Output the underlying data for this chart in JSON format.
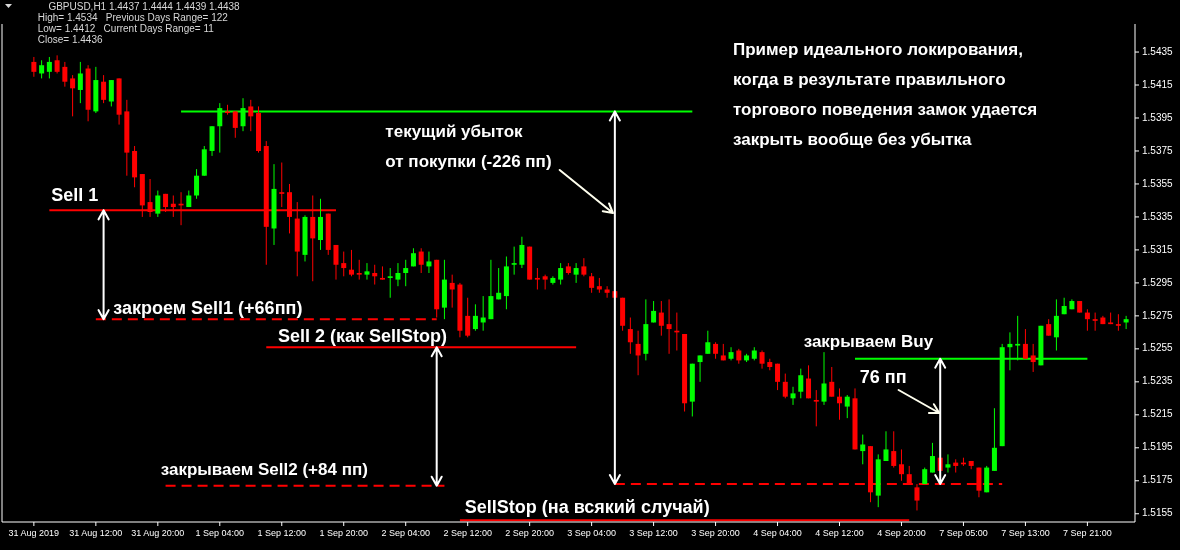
{
  "chart_data": {
    "type": "candlestick",
    "categories": [
      "31 Aug 2019",
      null,
      null,
      null,
      null,
      null,
      null,
      null,
      "31 Aug 12:00",
      null,
      null,
      null,
      null,
      null,
      null,
      null,
      "31 Aug 20:00",
      null,
      null,
      null,
      null,
      null,
      null,
      null,
      "1 Sep 04:00",
      null,
      null,
      null,
      null,
      null,
      null,
      null,
      "1 Sep 12:00",
      null,
      null,
      null,
      null,
      null,
      null,
      null,
      "1 Sep 20:00",
      null,
      null,
      null,
      null,
      null,
      null,
      null,
      "2 Sep 04:00",
      null,
      null,
      null,
      null,
      null,
      null,
      null,
      "2 Sep 12:00",
      null,
      null,
      null,
      null,
      null,
      null,
      null,
      "2 Sep 20:00",
      null,
      null,
      null,
      null,
      null,
      null,
      null,
      "3 Sep 04:00",
      null,
      null,
      null,
      null,
      null,
      null,
      null,
      "3 Sep 12:00",
      null,
      null,
      null,
      null,
      null,
      null,
      null,
      "3 Sep 20:00",
      null,
      null,
      null,
      null,
      null,
      null,
      null,
      "4 Sep 04:00",
      null,
      null,
      null,
      null,
      null,
      null,
      null,
      "4 Sep 12:00",
      null,
      null,
      null,
      null,
      null,
      null,
      null,
      "4 Sep 20:00",
      null,
      null,
      null,
      null,
      null,
      null,
      null,
      "7 Sep 05:00",
      null,
      null,
      null,
      null,
      null,
      null,
      null,
      "7 Sep 13:00",
      null,
      null,
      null,
      null,
      null,
      null,
      null,
      "7 Sep 21:00",
      null,
      null,
      null,
      null,
      null
    ],
    "ohlc": [
      [
        1.5429,
        1.5432,
        1.542,
        1.5423
      ],
      [
        1.5422,
        1.543,
        1.5419,
        1.5427
      ],
      [
        1.5423,
        1.5432,
        1.5419,
        1.5429
      ],
      [
        1.543,
        1.5433,
        1.5422,
        1.5423
      ],
      [
        1.5426,
        1.5429,
        1.5414,
        1.5417
      ],
      [
        1.5419,
        1.5421,
        1.5396,
        1.5413
      ],
      [
        1.5412,
        1.5429,
        1.5404,
        1.5422
      ],
      [
        1.5425,
        1.5427,
        1.5393,
        1.54
      ],
      [
        1.5399,
        1.5426,
        1.5398,
        1.5418
      ],
      [
        1.5417,
        1.5421,
        1.5404,
        1.5406
      ],
      [
        1.5405,
        1.5418,
        1.5402,
        1.5418
      ],
      [
        1.5419,
        1.5419,
        1.5391,
        1.5397
      ],
      [
        1.5399,
        1.5406,
        1.536,
        1.5374
      ],
      [
        1.5375,
        1.5378,
        1.5353,
        1.5359
      ],
      [
        1.5361,
        1.5361,
        1.5335,
        1.5342
      ],
      [
        1.5344,
        1.5358,
        1.5335,
        1.5338
      ],
      [
        1.5337,
        1.5351,
        1.5335,
        1.5348
      ],
      [
        1.5349,
        1.5349,
        1.5338,
        1.5341
      ],
      [
        1.5343,
        1.5348,
        1.5335,
        1.5341
      ],
      [
        1.5343,
        1.535,
        1.533,
        1.5342
      ],
      [
        1.5341,
        1.5351,
        1.5341,
        1.5348
      ],
      [
        1.5348,
        1.5364,
        1.5346,
        1.536
      ],
      [
        1.536,
        1.5378,
        1.536,
        1.5376
      ],
      [
        1.5375,
        1.539,
        1.5372,
        1.539
      ],
      [
        1.539,
        1.5404,
        1.5374,
        1.5401
      ],
      [
        1.5399,
        1.5403,
        1.5397,
        1.5398
      ],
      [
        1.5399,
        1.5399,
        1.5383,
        1.5389
      ],
      [
        1.539,
        1.5407,
        1.5387,
        1.5401
      ],
      [
        1.5402,
        1.5406,
        1.5387,
        1.5396
      ],
      [
        1.5398,
        1.5402,
        1.5374,
        1.5375
      ],
      [
        1.5378,
        1.5381,
        1.5306,
        1.5329
      ],
      [
        1.5328,
        1.5367,
        1.5318,
        1.5352
      ],
      [
        1.535,
        1.5368,
        1.5341,
        1.5349
      ],
      [
        1.535,
        1.5355,
        1.5325,
        1.5335
      ],
      [
        1.5334,
        1.5344,
        1.5299,
        1.5314
      ],
      [
        1.5312,
        1.5336,
        1.5308,
        1.5335
      ],
      [
        1.5335,
        1.5348,
        1.5296,
        1.5322
      ],
      [
        1.5321,
        1.5346,
        1.5315,
        1.5335
      ],
      [
        1.5337,
        1.5337,
        1.5312,
        1.5315
      ],
      [
        1.5318,
        1.5318,
        1.5297,
        1.5306
      ],
      [
        1.5307,
        1.5314,
        1.5299,
        1.5304
      ],
      [
        1.5303,
        1.5315,
        1.5299,
        1.53
      ],
      [
        1.5301,
        1.5309,
        1.5297,
        1.53
      ],
      [
        1.53,
        1.5307,
        1.5297,
        1.5302
      ],
      [
        1.5301,
        1.5306,
        1.5294,
        1.5299
      ],
      [
        1.5298,
        1.5305,
        1.5297,
        1.5297
      ],
      [
        1.5298,
        1.5304,
        1.5286,
        1.5299
      ],
      [
        1.5297,
        1.5307,
        1.5293,
        1.5301
      ],
      [
        1.5301,
        1.5309,
        1.5293,
        1.5304
      ],
      [
        1.5305,
        1.5316,
        1.5305,
        1.5313
      ],
      [
        1.5314,
        1.5316,
        1.5301,
        1.5306
      ],
      [
        1.5305,
        1.5314,
        1.5301,
        1.5308
      ],
      [
        1.5309,
        1.5309,
        1.5274,
        1.5279
      ],
      [
        1.528,
        1.5309,
        1.5273,
        1.5297
      ],
      [
        1.5295,
        1.53,
        1.528,
        1.5291
      ],
      [
        1.5294,
        1.5295,
        1.5262,
        1.5266
      ],
      [
        1.5275,
        1.5286,
        1.5262,
        1.5263
      ],
      [
        1.5267,
        1.5282,
        1.5266,
        1.5275
      ],
      [
        1.5271,
        1.5287,
        1.5266,
        1.5274
      ],
      [
        1.5273,
        1.5309,
        1.5273,
        1.5287
      ],
      [
        1.5285,
        1.5304,
        1.5285,
        1.5289
      ],
      [
        1.5287,
        1.5311,
        1.5279,
        1.5305
      ],
      [
        1.5306,
        1.5317,
        1.53,
        1.5307
      ],
      [
        1.5306,
        1.5323,
        1.5304,
        1.5318
      ],
      [
        1.5317,
        1.5317,
        1.5297,
        1.5297
      ],
      [
        1.5298,
        1.5304,
        1.5291,
        1.5297
      ],
      [
        1.5299,
        1.53,
        1.5291,
        1.5297
      ],
      [
        1.5295,
        1.5299,
        1.5294,
        1.5298
      ],
      [
        1.5297,
        1.5307,
        1.5294,
        1.5304
      ],
      [
        1.5305,
        1.5307,
        1.53,
        1.5301
      ],
      [
        1.53,
        1.5307,
        1.5295,
        1.5304
      ],
      [
        1.5305,
        1.531,
        1.5299,
        1.53
      ],
      [
        1.5299,
        1.5301,
        1.5289,
        1.5292
      ],
      [
        1.5293,
        1.5298,
        1.5289,
        1.5291
      ],
      [
        1.5291,
        1.5293,
        1.5286,
        1.5289
      ],
      [
        1.529,
        1.529,
        1.5286,
        1.5286
      ],
      [
        1.5286,
        1.5286,
        1.5266,
        1.5269
      ],
      [
        1.5267,
        1.5274,
        1.5252,
        1.5259
      ],
      [
        1.5258,
        1.5266,
        1.5239,
        1.5251
      ],
      [
        1.5252,
        1.5285,
        1.5248,
        1.527
      ],
      [
        1.5271,
        1.5284,
        1.5271,
        1.5278
      ],
      [
        1.5277,
        1.5284,
        1.5263,
        1.5269
      ],
      [
        1.527,
        1.5285,
        1.5252,
        1.5267
      ],
      [
        1.5266,
        1.5277,
        1.5254,
        1.5265
      ],
      [
        1.5264,
        1.5264,
        1.5217,
        1.5222
      ],
      [
        1.5223,
        1.5246,
        1.5214,
        1.5246
      ],
      [
        1.5247,
        1.5251,
        1.5235,
        1.5251
      ],
      [
        1.5252,
        1.5266,
        1.5252,
        1.5259
      ],
      [
        1.5258,
        1.5259,
        1.5249,
        1.5252
      ],
      [
        1.5251,
        1.5258,
        1.5248,
        1.5248
      ],
      [
        1.5249,
        1.5256,
        1.5248,
        1.5253
      ],
      [
        1.5254,
        1.5255,
        1.5246,
        1.5248
      ],
      [
        1.5248,
        1.5252,
        1.5247,
        1.5251
      ],
      [
        1.5249,
        1.5256,
        1.5248,
        1.5254
      ],
      [
        1.5253,
        1.5254,
        1.5243,
        1.5246
      ],
      [
        1.5247,
        1.5249,
        1.5242,
        1.5244
      ],
      [
        1.5246,
        1.5246,
        1.523,
        1.5235
      ],
      [
        1.5235,
        1.524,
        1.5225,
        1.5226
      ],
      [
        1.5225,
        1.5232,
        1.5221,
        1.5228
      ],
      [
        1.5229,
        1.5243,
        1.5225,
        1.5239
      ],
      [
        1.5237,
        1.5245,
        1.5225,
        1.5225
      ],
      [
        1.5224,
        1.523,
        1.5208,
        1.5223
      ],
      [
        1.5223,
        1.5253,
        1.5221,
        1.5234
      ],
      [
        1.5235,
        1.5244,
        1.5226,
        1.5226
      ],
      [
        1.5226,
        1.5231,
        1.5212,
        1.5222
      ],
      [
        1.522,
        1.5227,
        1.5213,
        1.5226
      ],
      [
        1.5225,
        1.5231,
        1.5194,
        1.5194
      ],
      [
        1.5193,
        1.5203,
        1.5185,
        1.5197
      ],
      [
        1.5196,
        1.5196,
        1.5162,
        1.5168
      ],
      [
        1.5166,
        1.5191,
        1.5159,
        1.5188
      ],
      [
        1.5187,
        1.5205,
        1.5187,
        1.5194
      ],
      [
        1.5193,
        1.5205,
        1.5183,
        1.5184
      ],
      [
        1.5185,
        1.5194,
        1.5175,
        1.5179
      ],
      [
        1.5179,
        1.5184,
        1.5173,
        1.5173
      ],
      [
        1.5171,
        1.5173,
        1.5157,
        1.5163
      ],
      [
        1.5173,
        1.5183,
        1.5173,
        1.5182
      ],
      [
        1.518,
        1.5198,
        1.518,
        1.519
      ],
      [
        1.5189,
        1.5189,
        1.5181,
        1.5181
      ],
      [
        1.5183,
        1.5191,
        1.518,
        1.5185
      ],
      [
        1.5186,
        1.5188,
        1.518,
        1.5184
      ],
      [
        1.5186,
        1.5189,
        1.5184,
        1.5185
      ],
      [
        1.5187,
        1.5187,
        1.5182,
        1.5184
      ],
      [
        1.5183,
        1.5183,
        1.5165,
        1.5169
      ],
      [
        1.5168,
        1.5184,
        1.5168,
        1.5183
      ],
      [
        1.5181,
        1.5219,
        1.5181,
        1.5195
      ],
      [
        1.5196,
        1.5258,
        1.5196,
        1.5256
      ],
      [
        1.5256,
        1.5265,
        1.5242,
        1.5258
      ],
      [
        1.5257,
        1.5275,
        1.5248,
        1.5258
      ],
      [
        1.5258,
        1.5267,
        1.5249,
        1.5249
      ],
      [
        1.5251,
        1.5258,
        1.5241,
        1.5247
      ],
      [
        1.5245,
        1.5269,
        1.5245,
        1.5269
      ],
      [
        1.527,
        1.5273,
        1.5263,
        1.5263
      ],
      [
        1.5262,
        1.5285,
        1.5254,
        1.5275
      ],
      [
        1.5276,
        1.5286,
        1.5276,
        1.5281
      ],
      [
        1.5279,
        1.5285,
        1.5279,
        1.5284
      ],
      [
        1.5284,
        1.5284,
        1.5277,
        1.5277
      ],
      [
        1.5277,
        1.5279,
        1.5266,
        1.5273
      ],
      [
        1.5273,
        1.5277,
        1.5266,
        1.5272
      ],
      [
        1.5274,
        1.5275,
        1.527,
        1.527
      ],
      [
        1.5271,
        1.5277,
        1.527,
        1.527
      ],
      [
        1.527,
        1.5276,
        1.5266,
        1.5269
      ],
      [
        1.5271,
        1.5275,
        1.5267,
        1.5273
      ]
    ],
    "colors": [
      "#ff0000",
      "#00ff00",
      "#00ff00",
      "#ff0000",
      "#ff0000",
      "#ff0000",
      "#00ff00",
      "#ff0000",
      "#00ff00",
      "#ff0000",
      "#00ff00",
      "#ff0000",
      "#ff0000",
      "#ff0000",
      "#ff0000",
      "#ff0000",
      "#00ff00",
      "#ff0000",
      "#ff0000",
      "#ff0000",
      "#00ff00",
      "#00ff00",
      "#00ff00",
      "#00ff00",
      "#00ff00",
      "#ff0000",
      "#ff0000",
      "#00ff00",
      "#ff0000",
      "#ff0000",
      "#ff0000",
      "#00ff00",
      "#ff0000",
      "#ff0000",
      "#ff0000",
      "#00ff00",
      "#ff0000",
      "#00ff00",
      "#ff0000",
      "#ff0000",
      "#ff0000",
      "#ff0000",
      "#ff0000",
      "#00ff00",
      "#ff0000",
      "#ff0000",
      "#00ff00",
      "#00ff00",
      "#00ff00",
      "#00ff00",
      "#ff0000",
      "#00ff00",
      "#ff0000",
      "#00ff00",
      "#ff0000",
      "#ff0000",
      "#ff0000",
      "#00ff00",
      "#00ff00",
      "#00ff00",
      "#00ff00",
      "#00ff00",
      "#00ff00",
      "#00ff00",
      "#ff0000",
      "#ff0000",
      "#ff0000",
      "#00ff00",
      "#00ff00",
      "#ff0000",
      "#00ff00",
      "#ff0000",
      "#ff0000",
      "#ff0000",
      "#ff0000",
      "#ff0000",
      "#ff0000",
      "#ff0000",
      "#ff0000",
      "#00ff00",
      "#00ff00",
      "#ff0000",
      "#ff0000",
      "#ff0000",
      "#ff0000",
      "#00ff00",
      "#00ff00",
      "#00ff00",
      "#ff0000",
      "#ff0000",
      "#00ff00",
      "#ff0000",
      "#00ff00",
      "#00ff00",
      "#ff0000",
      "#ff0000",
      "#ff0000",
      "#ff0000",
      "#00ff00",
      "#00ff00",
      "#ff0000",
      "#ff0000",
      "#00ff00",
      "#ff0000",
      "#ff0000",
      "#00ff00",
      "#ff0000",
      "#00ff00",
      "#ff0000",
      "#00ff00",
      "#00ff00",
      "#ff0000",
      "#ff0000",
      "#ff0000",
      "#ff0000",
      "#00ff00",
      "#00ff00",
      "#ff0000",
      "#00ff00",
      "#ff0000",
      "#ff0000",
      "#ff0000",
      "#ff0000",
      "#00ff00",
      "#00ff00",
      "#00ff00",
      "#00ff00",
      "#00ff00",
      "#ff0000",
      "#ff0000",
      "#00ff00",
      "#ff0000",
      "#00ff00",
      "#00ff00",
      "#00ff00",
      "#ff0000",
      "#ff0000",
      "#ff0000",
      "#ff0000",
      "#ff0000",
      "#ff0000",
      "#00ff00"
    ],
    "series": [
      {
        "type": "line",
        "color": "#00ff00",
        "line_style": "solid",
        "values": [
          null,
          null,
          null,
          null,
          null,
          null,
          null,
          null,
          null,
          null,
          null,
          null,
          null,
          null,
          null,
          null,
          null,
          null,
          null,
          1.5399,
          1.5399,
          1.5399,
          1.5399,
          1.5399,
          1.5399,
          1.5399,
          1.5399,
          1.5399,
          1.5399,
          1.5399,
          1.5399,
          1.5399,
          1.5399,
          1.5399,
          1.5399,
          1.5399,
          1.5399,
          1.5399,
          1.5399,
          1.5399,
          1.5399,
          1.5399,
          1.5399,
          1.5399,
          1.5399,
          1.5399,
          1.5399,
          1.5399,
          1.5399,
          1.5399,
          1.5399,
          1.5399,
          1.5399,
          1.5399,
          1.5399,
          1.5399,
          1.5399,
          1.5399,
          1.5399,
          1.5399,
          1.5399,
          1.5399,
          1.5399,
          1.5399,
          1.5399,
          1.5399,
          1.5399,
          1.5399,
          1.5399,
          1.5399,
          1.5399,
          1.5399,
          1.5399,
          1.5399,
          1.5399,
          1.5399,
          1.5399,
          1.5399,
          1.5399,
          1.5399,
          1.5399,
          1.5399,
          1.5399,
          1.5399,
          1.5399,
          1.5399,
          null,
          null,
          null,
          null,
          null,
          null,
          null,
          null,
          null,
          null,
          null,
          null,
          null,
          null,
          null,
          null,
          null,
          null,
          null,
          null,
          null,
          null,
          null,
          null,
          null,
          null,
          null,
          null,
          null,
          null,
          null,
          null,
          null,
          null,
          null,
          null,
          null,
          null,
          null,
          null,
          null,
          null,
          null,
          null,
          null,
          null,
          null,
          null,
          null,
          null,
          null,
          null,
          null,
          null,
          null,
          null
        ]
      },
      {
        "type": "line",
        "color": "#ff0000",
        "line_style": "solid",
        "values": [
          null,
          null,
          1.5339,
          1.5339,
          1.5339,
          1.5339,
          1.5339,
          1.5339,
          1.5339,
          1.5339,
          1.5339,
          1.5339,
          1.5339,
          1.5339,
          1.5339,
          1.5339,
          1.5339,
          1.5339,
          1.5339,
          1.5339,
          1.5339,
          1.5339,
          1.5339,
          1.5339,
          1.5339,
          1.5339,
          1.5339,
          1.5339,
          1.5339,
          1.5339,
          1.5339,
          1.5339,
          1.5339,
          1.5339,
          1.5339,
          1.5339,
          1.5339,
          1.5339,
          1.5339,
          1.5339,
          null,
          null,
          null,
          null,
          null,
          null,
          null,
          null,
          null,
          null,
          null,
          null,
          null,
          null,
          null,
          null,
          null,
          null,
          null,
          null,
          null,
          null,
          null,
          null,
          null,
          null,
          null,
          null,
          null,
          null,
          null,
          null,
          null,
          null,
          null,
          null,
          null,
          null,
          null,
          null,
          null,
          null,
          null,
          null,
          null,
          null,
          null,
          null,
          null,
          null,
          null,
          null,
          null,
          null,
          null,
          null,
          null,
          null,
          null,
          null,
          null,
          null,
          null,
          null,
          null,
          null,
          null,
          null,
          null,
          null,
          null,
          null,
          null,
          null,
          null,
          null,
          null,
          null,
          null,
          null,
          null,
          null,
          null,
          null,
          null,
          null,
          null,
          null,
          null,
          null,
          null,
          null,
          null,
          null,
          null,
          null,
          null,
          null,
          null,
          null,
          null,
          null
        ]
      },
      {
        "type": "line",
        "color": "#ff0000",
        "line_style": "dashed",
        "values": [
          null,
          null,
          null,
          null,
          null,
          null,
          null,
          null,
          1.5273,
          1.5273,
          1.5273,
          1.5273,
          1.5273,
          1.5273,
          1.5273,
          1.5273,
          1.5273,
          1.5273,
          1.5273,
          1.5273,
          1.5273,
          1.5273,
          1.5273,
          1.5273,
          1.5273,
          1.5273,
          1.5273,
          1.5273,
          1.5273,
          1.5273,
          1.5273,
          1.5273,
          1.5273,
          1.5273,
          1.5273,
          1.5273,
          1.5273,
          1.5273,
          1.5273,
          1.5273,
          1.5273,
          1.5273,
          1.5273,
          1.5273,
          1.5273,
          1.5273,
          1.5273,
          1.5273,
          1.5273,
          1.5273,
          1.5273,
          1.5273,
          1.5273,
          null,
          null,
          null,
          null,
          null,
          null,
          null,
          null,
          null,
          null,
          null,
          null,
          null,
          null,
          null,
          null,
          null,
          null,
          null,
          null,
          null,
          null,
          null,
          null,
          null,
          null,
          null,
          null,
          null,
          null,
          null,
          null,
          null,
          null,
          null,
          null,
          null,
          null,
          null,
          null,
          null,
          null,
          null,
          null,
          null,
          null,
          null,
          null,
          null,
          null,
          null,
          null,
          null,
          null,
          null,
          null,
          null,
          null,
          null,
          null,
          null,
          null,
          null,
          null,
          null,
          null,
          null,
          null,
          null,
          null,
          null,
          null,
          null,
          null,
          null,
          null,
          null,
          null,
          null,
          null,
          null,
          null,
          null,
          null,
          null,
          null,
          null,
          null,
          null
        ]
      },
      {
        "type": "line",
        "color": "#ff0000",
        "line_style": "solid",
        "values": [
          null,
          null,
          null,
          null,
          null,
          null,
          null,
          null,
          null,
          null,
          null,
          null,
          null,
          null,
          null,
          null,
          null,
          null,
          null,
          null,
          null,
          null,
          null,
          null,
          null,
          null,
          null,
          null,
          null,
          null,
          1.5256,
          1.5256,
          1.5256,
          1.5256,
          1.5256,
          1.5256,
          1.5256,
          1.5256,
          1.5256,
          1.5256,
          1.5256,
          1.5256,
          1.5256,
          1.5256,
          1.5256,
          1.5256,
          1.5256,
          1.5256,
          1.5256,
          1.5256,
          1.5256,
          1.5256,
          1.5256,
          1.5256,
          1.5256,
          1.5256,
          1.5256,
          1.5256,
          1.5256,
          1.5256,
          1.5256,
          1.5256,
          1.5256,
          1.5256,
          1.5256,
          1.5256,
          1.5256,
          1.5256,
          1.5256,
          1.5256,
          1.5256,
          null,
          null,
          null,
          null,
          null,
          null,
          null,
          null,
          null,
          null,
          null,
          null,
          null,
          null,
          null,
          null,
          null,
          null,
          null,
          null,
          null,
          null,
          null,
          null,
          null,
          null,
          null,
          null,
          null,
          null,
          null,
          null,
          null,
          null,
          null,
          null,
          null,
          null,
          null,
          null,
          null,
          null,
          null,
          null,
          null,
          null,
          null,
          null,
          null,
          null,
          null,
          null,
          null,
          null,
          null,
          null,
          null,
          null,
          null,
          null,
          null,
          null,
          null,
          null,
          null,
          null,
          null,
          null,
          null,
          null,
          null
        ]
      },
      {
        "type": "line",
        "color": "#ff0000",
        "line_style": "dashed",
        "values": [
          null,
          null,
          null,
          null,
          null,
          null,
          null,
          null,
          null,
          null,
          null,
          null,
          null,
          null,
          null,
          null,
          null,
          1.5172,
          1.5172,
          1.5172,
          1.5172,
          1.5172,
          1.5172,
          1.5172,
          1.5172,
          1.5172,
          1.5172,
          1.5172,
          1.5172,
          1.5172,
          1.5172,
          1.5172,
          1.5172,
          1.5172,
          1.5172,
          1.5172,
          1.5172,
          1.5172,
          1.5172,
          1.5172,
          1.5172,
          1.5172,
          1.5172,
          1.5172,
          1.5172,
          1.5172,
          1.5172,
          1.5172,
          1.5172,
          1.5172,
          1.5172,
          1.5172,
          1.5172,
          1.5172,
          null,
          null,
          null,
          null,
          null,
          null,
          null,
          null,
          null,
          null,
          null,
          null,
          null,
          null,
          null,
          null,
          null,
          null,
          null,
          null,
          null,
          null,
          null,
          null,
          null,
          null,
          null,
          null,
          null,
          null,
          null,
          null,
          null,
          null,
          null,
          null,
          null,
          null,
          null,
          null,
          null,
          null,
          null,
          null,
          null,
          null,
          null,
          null,
          null,
          null,
          null,
          null,
          null,
          null,
          null,
          null,
          null,
          null,
          null,
          null,
          null,
          null,
          null,
          null,
          null,
          null,
          null,
          null,
          null,
          null,
          null,
          null,
          null,
          null,
          null,
          null,
          null,
          null,
          null,
          null,
          null,
          null,
          null,
          null,
          null,
          null,
          null,
          null
        ]
      },
      {
        "type": "line",
        "color": "#ff0000",
        "line_style": "dashed",
        "values": [
          null,
          null,
          null,
          null,
          null,
          null,
          null,
          null,
          null,
          null,
          null,
          null,
          null,
          null,
          null,
          null,
          null,
          null,
          null,
          null,
          null,
          null,
          null,
          null,
          null,
          null,
          null,
          null,
          null,
          null,
          null,
          null,
          null,
          null,
          null,
          null,
          null,
          null,
          null,
          null,
          null,
          null,
          null,
          null,
          null,
          null,
          null,
          null,
          null,
          null,
          null,
          null,
          null,
          null,
          null,
          null,
          null,
          null,
          null,
          null,
          null,
          null,
          null,
          null,
          null,
          null,
          null,
          null,
          null,
          null,
          null,
          null,
          null,
          null,
          null,
          1.5173,
          1.5173,
          1.5173,
          1.5173,
          1.5173,
          1.5173,
          1.5173,
          1.5173,
          1.5173,
          1.5173,
          1.5173,
          1.5173,
          1.5173,
          1.5173,
          1.5173,
          1.5173,
          1.5173,
          1.5173,
          1.5173,
          1.5173,
          1.5173,
          1.5173,
          1.5173,
          1.5173,
          1.5173,
          1.5173,
          1.5173,
          1.5173,
          1.5173,
          1.5173,
          1.5173,
          1.5173,
          1.5173,
          1.5173,
          1.5173,
          1.5173,
          1.5173,
          1.5173,
          1.5173,
          1.5173,
          1.5173,
          1.5173,
          1.5173,
          1.5173,
          1.5173,
          1.5173,
          1.5173,
          1.5173,
          1.5173,
          1.5173,
          1.5173,
          null,
          null,
          null,
          null,
          null,
          null,
          null,
          null,
          null,
          null,
          null,
          null,
          null,
          null,
          null,
          null
        ]
      },
      {
        "type": "line",
        "color": "#ff0000",
        "line_style": "solid",
        "values": [
          null,
          null,
          null,
          null,
          null,
          null,
          null,
          null,
          null,
          null,
          null,
          null,
          null,
          null,
          null,
          null,
          null,
          null,
          null,
          null,
          null,
          null,
          null,
          null,
          null,
          null,
          null,
          null,
          null,
          null,
          null,
          null,
          null,
          null,
          null,
          null,
          null,
          null,
          null,
          null,
          null,
          null,
          null,
          null,
          null,
          null,
          null,
          null,
          null,
          null,
          null,
          null,
          null,
          null,
          null,
          1.5151,
          1.5151,
          1.5151,
          1.5151,
          1.5151,
          1.5151,
          1.5151,
          1.5151,
          1.5151,
          1.5151,
          1.5151,
          1.5151,
          1.5151,
          1.5151,
          1.5151,
          1.5151,
          1.5151,
          1.5151,
          1.5151,
          1.5151,
          1.5151,
          1.5151,
          1.5151,
          1.5151,
          1.5151,
          1.5151,
          1.5151,
          1.5151,
          1.5151,
          1.5151,
          1.5151,
          1.5151,
          1.5151,
          1.5151,
          1.5151,
          1.5151,
          1.5151,
          1.5151,
          1.5151,
          1.5151,
          1.5151,
          1.5151,
          1.5151,
          1.5151,
          1.5151,
          1.5151,
          1.5151,
          1.5151,
          1.5151,
          1.5151,
          1.5151,
          1.5151,
          1.5151,
          1.5151,
          1.5151,
          1.5151,
          1.5151,
          1.5151,
          1.5151,
          null,
          null,
          null,
          null,
          null,
          null,
          null,
          null,
          null,
          null,
          null,
          null,
          null,
          null,
          null,
          null,
          null,
          null,
          null,
          null,
          null,
          null,
          null,
          null,
          null,
          null,
          null,
          null
        ]
      },
      {
        "type": "line",
        "color": "#00ff00",
        "line_style": "solid",
        "values": [
          null,
          null,
          null,
          null,
          null,
          null,
          null,
          null,
          null,
          null,
          null,
          null,
          null,
          null,
          null,
          null,
          null,
          null,
          null,
          null,
          null,
          null,
          null,
          null,
          null,
          null,
          null,
          null,
          null,
          null,
          null,
          null,
          null,
          null,
          null,
          null,
          null,
          null,
          null,
          null,
          null,
          null,
          null,
          null,
          null,
          null,
          null,
          null,
          null,
          null,
          null,
          null,
          null,
          null,
          null,
          null,
          null,
          null,
          null,
          null,
          null,
          null,
          null,
          null,
          null,
          null,
          null,
          null,
          null,
          null,
          null,
          null,
          null,
          null,
          null,
          null,
          null,
          null,
          null,
          null,
          null,
          null,
          null,
          null,
          null,
          null,
          null,
          null,
          null,
          null,
          null,
          null,
          null,
          null,
          null,
          null,
          null,
          null,
          null,
          null,
          null,
          null,
          null,
          null,
          null,
          null,
          1.5249,
          1.5249,
          1.5249,
          1.5249,
          1.5249,
          1.5249,
          1.5249,
          1.5249,
          1.5249,
          1.5249,
          1.5249,
          1.5249,
          1.5249,
          1.5249,
          1.5249,
          1.5249,
          1.5249,
          1.5249,
          1.5249,
          1.5249,
          1.5249,
          1.5249,
          1.5249,
          1.5249,
          1.5249,
          1.5249,
          1.5249,
          1.5249,
          1.5249,
          1.5249,
          1.5249,
          null,
          null,
          null,
          null,
          null
        ]
      }
    ],
    "ylim": [
      1.515,
      1.5452
    ],
    "yticks": [
      1.5155,
      1.5175,
      1.5195,
      1.5215,
      1.5235,
      1.5255,
      1.5275,
      1.5295,
      1.5315,
      1.5335,
      1.5355,
      1.5375,
      1.5395,
      1.5415,
      1.5435
    ],
    "annotations": [
      "GBPUSD,H1 1.4437 1.4444 1.4439 1.4438",
      "High= 1.4534   Previous Days Range= 122",
      "Low= 1.4412   Current Days Range= 11",
      "Close= 1.4436",
      {
        "text": "Sell 1",
        "y": 1.5339
      },
      {
        "text": "закроем Sell1 (+66пп)",
        "y": 1.5273
      },
      {
        "text": "Sell 2 (как SellStop)",
        "y": 1.5256
      },
      {
        "text": "закрываем Sell2 (+84 пп)",
        "y": 1.5172
      },
      {
        "text": "SellStop (на всякий случай)",
        "y": 1.5151
      },
      "текущий убыток\nот покупки (-226 пп)",
      {
        "text": "закрываем Buy",
        "y": 1.5249
      },
      "76 пп",
      "Пример идеального локирования,\nкогда в результате правильного\nторгового поведения замок удается\nзакрыть вообще без убытка"
    ]
  }
}
